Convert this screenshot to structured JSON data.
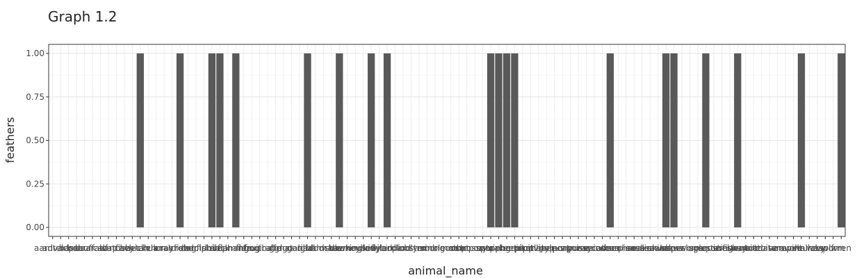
{
  "chart_data": {
    "type": "bar",
    "title": "Graph 1.2",
    "xlabel": "animal_name",
    "ylabel": "feathers",
    "ylim": [
      0,
      1
    ],
    "yticks": [
      "0.00",
      "0.25",
      "0.50",
      "0.75",
      "1.00"
    ],
    "grid": true,
    "bar_color": "#595959",
    "categories": [
      "aardvark",
      "antelope",
      "bass",
      "bear",
      "boar",
      "buffalo",
      "calf",
      "carp",
      "catfish",
      "cavy",
      "cheetah",
      "chicken",
      "chub",
      "clam",
      "crab",
      "crayfish",
      "crow",
      "deer",
      "dogfish",
      "dolphin",
      "dove",
      "duck",
      "elephant",
      "flamingo",
      "flea",
      "frog",
      "fruitbat",
      "giraffe",
      "girl",
      "gnat",
      "goat",
      "gorilla",
      "gull",
      "haddock",
      "hamster",
      "hare",
      "hawk",
      "herring",
      "honeybee",
      "housefly",
      "kiwi",
      "ladybird",
      "lark",
      "leopard",
      "lion",
      "lobster",
      "lynx",
      "mink",
      "mole",
      "mongoose",
      "moth",
      "newt",
      "octopus",
      "opossum",
      "oryx",
      "ostrich",
      "parakeet",
      "penguin",
      "pheasant",
      "pike",
      "piranha",
      "pitviper",
      "platypus",
      "polecat",
      "pony",
      "porpoise",
      "puma",
      "pussycat",
      "raccoon",
      "reindeer",
      "rhea",
      "scorpion",
      "seahorse",
      "seal",
      "sealion",
      "seasnake",
      "seawasp",
      "skimmer",
      "skua",
      "slowworm",
      "slug",
      "sole",
      "sparrow",
      "squirrel",
      "starfish",
      "stingray",
      "swan",
      "termite",
      "toad",
      "tortoise",
      "tuatara",
      "tuna",
      "vampire",
      "vole",
      "vulture",
      "wallaby",
      "wasp",
      "wolf",
      "worm",
      "wren"
    ],
    "values": [
      0,
      0,
      0,
      0,
      0,
      0,
      0,
      0,
      0,
      0,
      0,
      1,
      0,
      0,
      0,
      0,
      1,
      0,
      0,
      0,
      1,
      1,
      0,
      1,
      0,
      0,
      0,
      0,
      0,
      0,
      0,
      0,
      1,
      0,
      0,
      0,
      1,
      0,
      0,
      0,
      1,
      0,
      1,
      0,
      0,
      0,
      0,
      0,
      0,
      0,
      0,
      0,
      0,
      0,
      0,
      1,
      1,
      1,
      1,
      0,
      0,
      0,
      0,
      0,
      0,
      0,
      0,
      0,
      0,
      0,
      1,
      0,
      0,
      0,
      0,
      0,
      0,
      1,
      1,
      0,
      0,
      0,
      1,
      0,
      0,
      0,
      1,
      0,
      0,
      0,
      0,
      0,
      0,
      0,
      1,
      0,
      0,
      0,
      0,
      1
    ]
  }
}
